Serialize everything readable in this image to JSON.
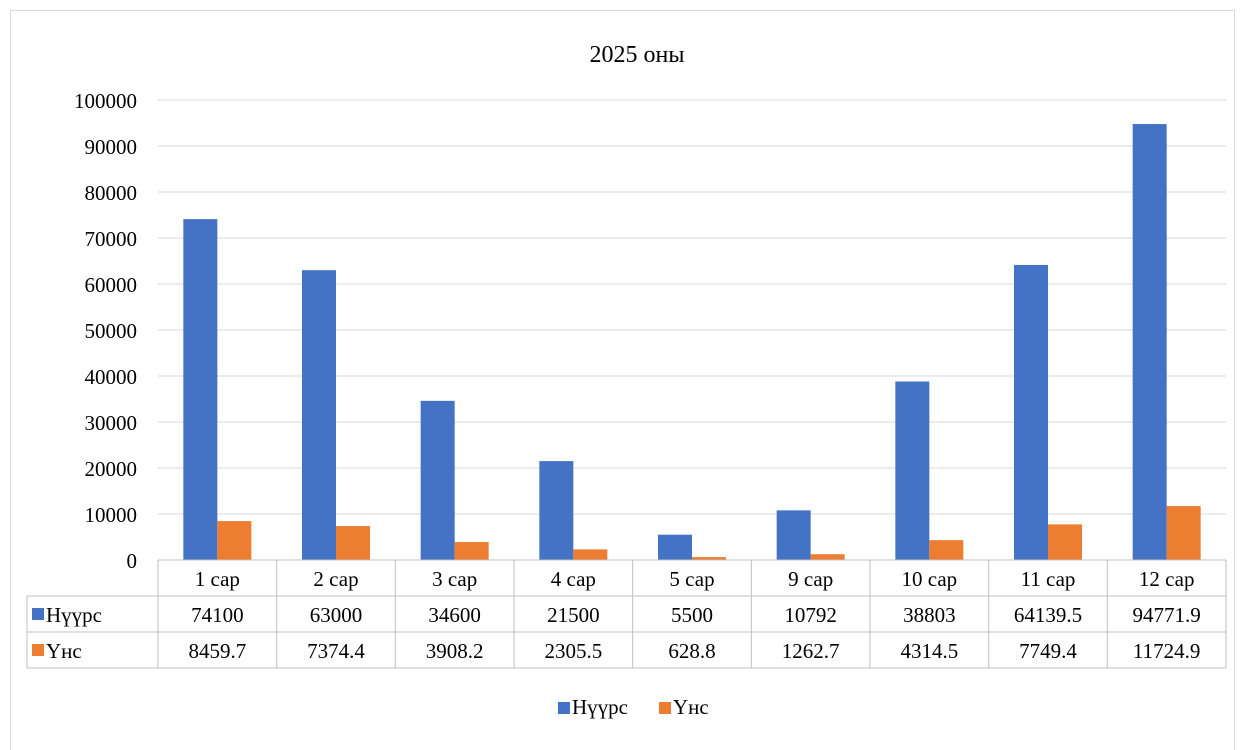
{
  "chart_data": {
    "type": "bar",
    "title": "2025 оны",
    "categories": [
      "1 сар",
      "2 сар",
      "3 сар",
      "4 сар",
      "5 сар",
      "9 сар",
      "10 сар",
      "11 сар",
      "12 сар"
    ],
    "series": [
      {
        "name": "Нүүрс",
        "color": "#4472c4",
        "values": [
          74100,
          63000,
          34600,
          21500,
          5500,
          10792,
          38803,
          64139.5,
          94771.9
        ],
        "table_values": [
          "74100",
          "63000",
          "34600",
          "21500",
          "5500",
          "10792",
          "38803",
          "64139.5",
          "94771.9"
        ]
      },
      {
        "name": "Үнс",
        "color": "#ed7d31",
        "values": [
          8459.7,
          7374.4,
          3908.2,
          2305.5,
          628.8,
          1262.7,
          4314.5,
          7749.4,
          11724.9
        ],
        "table_values": [
          "8459.7",
          "7374.4",
          "3908.2",
          "2305.5",
          "628.8",
          "1262.7",
          "4314.5",
          "7749.4",
          "11724.9"
        ]
      }
    ],
    "ylim": [
      0,
      100000
    ],
    "yticks": [
      0,
      10000,
      20000,
      30000,
      40000,
      50000,
      60000,
      70000,
      80000,
      90000,
      100000
    ],
    "ytick_labels": [
      "0",
      "10000",
      "20000",
      "30000",
      "40000",
      "50000",
      "60000",
      "70000",
      "80000",
      "90000",
      "100000"
    ],
    "grid": true,
    "legend_position": "bottom",
    "data_table": true
  }
}
